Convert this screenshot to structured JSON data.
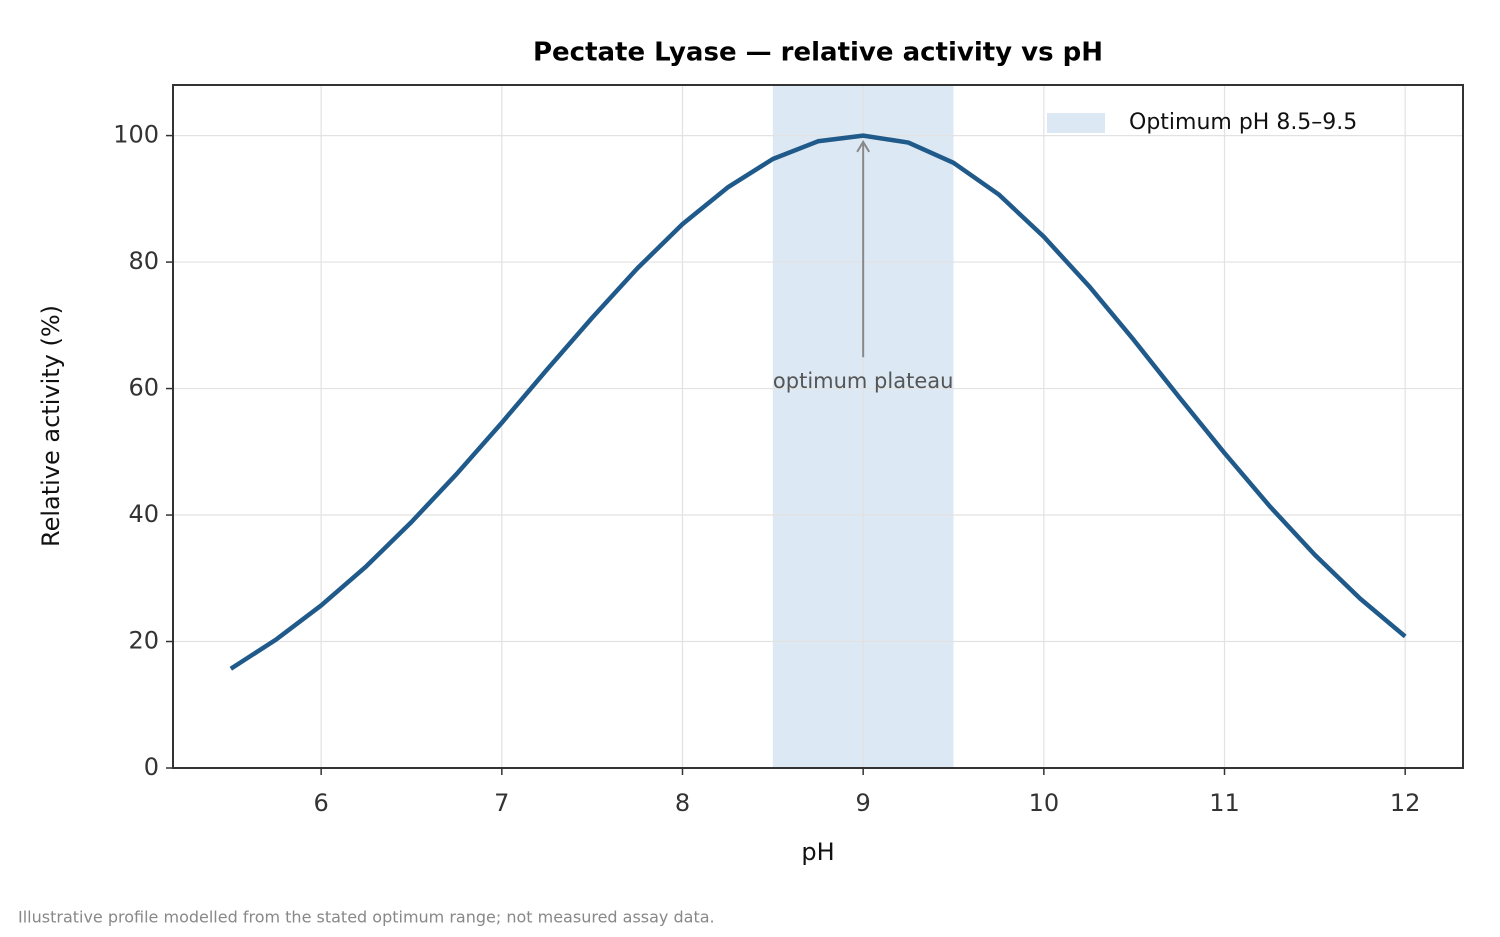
{
  "chart_data": {
    "type": "line",
    "title": "Pectate Lyase — relative activity vs pH",
    "xlabel": "pH",
    "ylabel": "Relative activity (%)",
    "note": "Illustrative profile modelled from the stated optimum range; not measured assay data.",
    "x": [
      5.5,
      5.75,
      6,
      6.25,
      6.5,
      6.75,
      7,
      7.25,
      7.5,
      7.75,
      8,
      8.25,
      8.5,
      8.75,
      9,
      9.25,
      9.5,
      9.75,
      10,
      10.25,
      10.5,
      10.75,
      11,
      11.25,
      11.5,
      11.75,
      12
    ],
    "series": [
      {
        "name": "Relative activity",
        "color": "#1f5a8a",
        "values": [
          15.7,
          20.3,
          25.7,
          31.9,
          38.9,
          46.5,
          54.6,
          63.0,
          71.2,
          79.0,
          86.0,
          91.8,
          96.3,
          99.1,
          100,
          98.9,
          95.7,
          90.7,
          84.0,
          76.2,
          67.6,
          58.6,
          49.8,
          41.4,
          33.7,
          26.8,
          20.8
        ]
      }
    ],
    "band": {
      "name": "Optimum pH 8.5–9.5",
      "range": [
        8.5,
        9.5
      ],
      "color": "#dce8f3"
    },
    "annotation": {
      "text": "optimum plateau",
      "xy": [
        9,
        99
      ],
      "xytext": [
        9,
        61
      ]
    },
    "xlim": [
      5.18,
      12.32
    ],
    "ylim": [
      0,
      108
    ],
    "xticks": [
      6,
      7,
      8,
      9,
      10,
      11,
      12
    ],
    "yticks": [
      0,
      20,
      40,
      60,
      80,
      100
    ],
    "grid": true,
    "legend": "upper right"
  }
}
